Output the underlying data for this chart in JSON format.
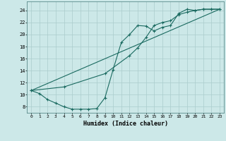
{
  "xlabel": "Humidex (Indice chaleur)",
  "bg_color": "#cce8e8",
  "line_color": "#1a6a60",
  "grid_color": "#aacccc",
  "xlim": [
    -0.5,
    23.5
  ],
  "ylim": [
    7,
    25.5
  ],
  "xticks": [
    0,
    1,
    2,
    3,
    4,
    5,
    6,
    7,
    8,
    9,
    10,
    11,
    12,
    13,
    14,
    15,
    16,
    17,
    18,
    19,
    20,
    21,
    22,
    23
  ],
  "yticks": [
    8,
    10,
    12,
    14,
    16,
    18,
    20,
    22,
    24
  ],
  "line1_x": [
    0,
    1,
    2,
    3,
    4,
    5,
    6,
    7,
    8,
    9,
    10,
    11,
    12,
    13,
    14,
    15,
    16,
    17,
    18,
    19,
    20,
    21,
    22,
    23
  ],
  "line1_y": [
    10.7,
    10.2,
    9.2,
    8.6,
    8.0,
    7.6,
    7.6,
    7.6,
    7.7,
    9.5,
    14.2,
    18.7,
    20.0,
    21.5,
    21.4,
    20.6,
    21.2,
    21.5,
    23.5,
    24.2,
    24.0,
    24.2,
    24.2,
    24.2
  ],
  "line2_x": [
    0,
    4,
    9,
    12,
    13,
    14,
    15,
    16,
    17,
    18,
    19,
    20,
    21,
    22,
    23
  ],
  "line2_y": [
    10.7,
    11.3,
    13.5,
    16.5,
    17.8,
    19.5,
    21.5,
    22.0,
    22.3,
    23.3,
    23.7,
    24.0,
    24.2,
    24.2,
    24.2
  ],
  "line3_x": [
    0,
    23
  ],
  "line3_y": [
    10.7,
    24.2
  ]
}
